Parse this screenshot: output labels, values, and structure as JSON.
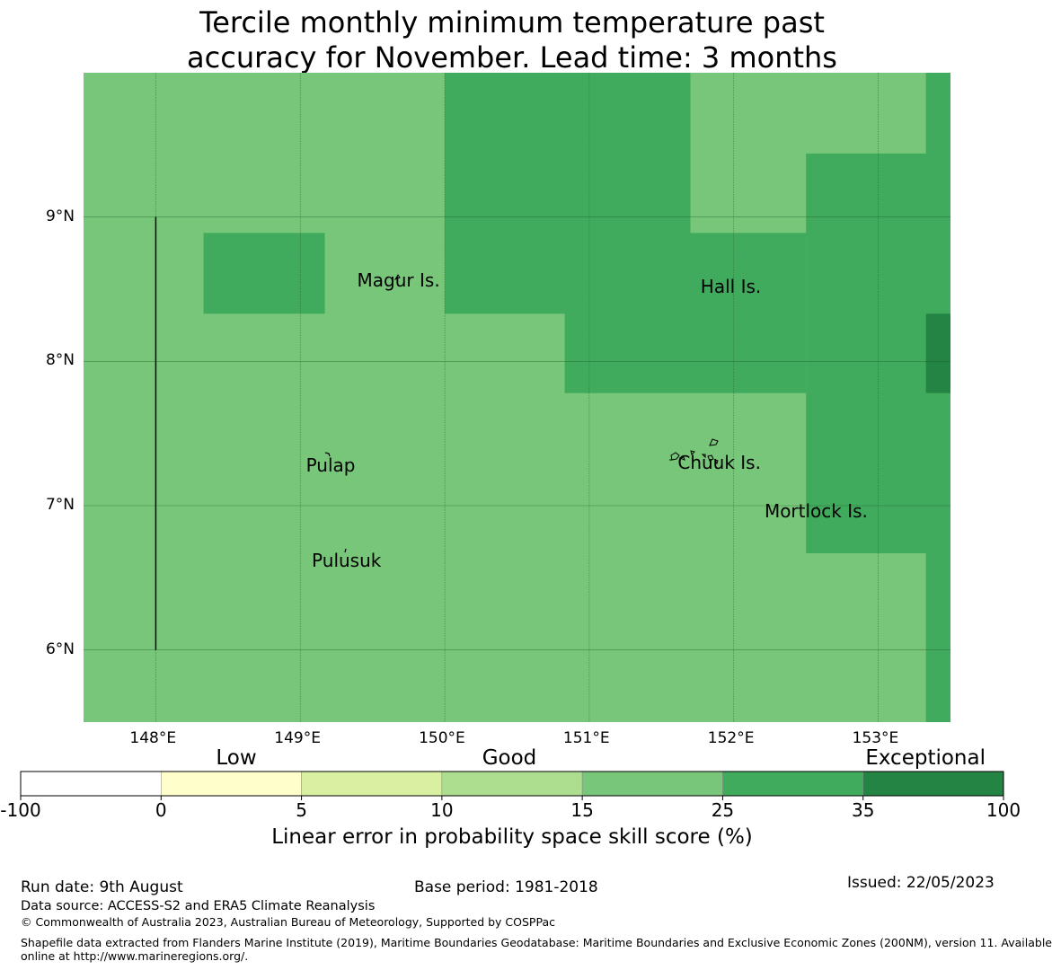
{
  "title": {
    "line1": "Tercile monthly minimum temperature past",
    "line2": "accuracy for November. Lead time: 3 months"
  },
  "map": {
    "lon_range": [
      147.5,
      153.5
    ],
    "lat_range": [
      5.5,
      10.0
    ],
    "lon_ticks": [
      {
        "value": 148,
        "label": "148°E"
      },
      {
        "value": 149,
        "label": "149°E"
      },
      {
        "value": 150,
        "label": "150°E"
      },
      {
        "value": 151,
        "label": "151°E"
      },
      {
        "value": 152,
        "label": "152°E"
      },
      {
        "value": 153,
        "label": "153°E"
      }
    ],
    "lat_ticks": [
      {
        "value": 9,
        "label": "9°N"
      },
      {
        "value": 8,
        "label": "8°N"
      },
      {
        "value": 7,
        "label": "7°N"
      },
      {
        "value": 6,
        "label": "6°N"
      }
    ],
    "grid_lines": true,
    "base_color": "#78c679",
    "cells": [
      {
        "lon0": 150.0,
        "lon1": 151.7,
        "lat0": 8.33,
        "lat1": 10.0,
        "color": "#41ab5d"
      },
      {
        "lon0": 150.83,
        "lon1": 152.5,
        "lat0": 7.78,
        "lat1": 8.89,
        "color": "#41ab5d"
      },
      {
        "lon0": 152.5,
        "lon1": 153.5,
        "lat0": 6.67,
        "lat1": 9.44,
        "color": "#41ab5d"
      },
      {
        "lon0": 153.33,
        "lon1": 153.5,
        "lat0": 5.5,
        "lat1": 10.0,
        "color": "#41ab5d"
      },
      {
        "lon0": 148.33,
        "lon1": 149.17,
        "lat0": 8.33,
        "lat1": 8.89,
        "color": "#41ab5d"
      },
      {
        "lon0": 153.33,
        "lon1": 153.5,
        "lat0": 7.78,
        "lat1": 8.33,
        "color": "#238443"
      }
    ],
    "boundary_line": {
      "lon": 148.0,
      "lat0": 6.0,
      "lat1": 9.0
    },
    "islands": [
      {
        "name": "Magur Is.",
        "lon": 149.68,
        "lat": 8.56
      },
      {
        "name": "Hall Is.",
        "lon": 151.98,
        "lat": 8.52
      },
      {
        "name": "Pulap",
        "lon": 149.21,
        "lat": 7.28
      },
      {
        "name": "Chuuk Is.",
        "lon": 151.9,
        "lat": 7.3
      },
      {
        "name": "Mortlock Is.",
        "lon": 152.57,
        "lat": 6.96
      },
      {
        "name": "Pulusuk",
        "lon": 149.32,
        "lat": 6.62
      }
    ]
  },
  "colorbar": {
    "categories": [
      {
        "label": "Low"
      },
      {
        "label": "Good"
      },
      {
        "label": "Exceptional"
      }
    ],
    "bins": [
      {
        "from": -100,
        "to": 0,
        "color": "#ffffff"
      },
      {
        "from": 0,
        "to": 5,
        "color": "#ffffcc"
      },
      {
        "from": 5,
        "to": 10,
        "color": "#d9f0a3"
      },
      {
        "from": 10,
        "to": 15,
        "color": "#addd8e"
      },
      {
        "from": 15,
        "to": 25,
        "color": "#78c679"
      },
      {
        "from": 25,
        "to": 35,
        "color": "#41ab5d"
      },
      {
        "from": 35,
        "to": 100,
        "color": "#238443"
      }
    ],
    "tick_labels": [
      "-100",
      "0",
      "5",
      "10",
      "15",
      "25",
      "35",
      "100"
    ],
    "label": "Linear error in probability space skill score (%)"
  },
  "footer": {
    "run_date": "Run date: 9th August",
    "base_period": "Base period: 1981-2018",
    "issued": "Issued: 22/05/2023",
    "data_source": "Data source: ACCESS-S2 and ERA5 Climate Reanalysis",
    "copyright": "© Commonwealth of Australia 2023, Australian Bureau of Meteorology, Supported by COSPPac",
    "shapefile_line1": "Shapefile data extracted from Flanders Marine Institute (2019), Maritime Boundaries Geodatabase: Maritime Boundaries and Exclusive Economic Zones (200NM), version 11. Available",
    "shapefile_line2": "online at http://www.marineregions.org/."
  }
}
